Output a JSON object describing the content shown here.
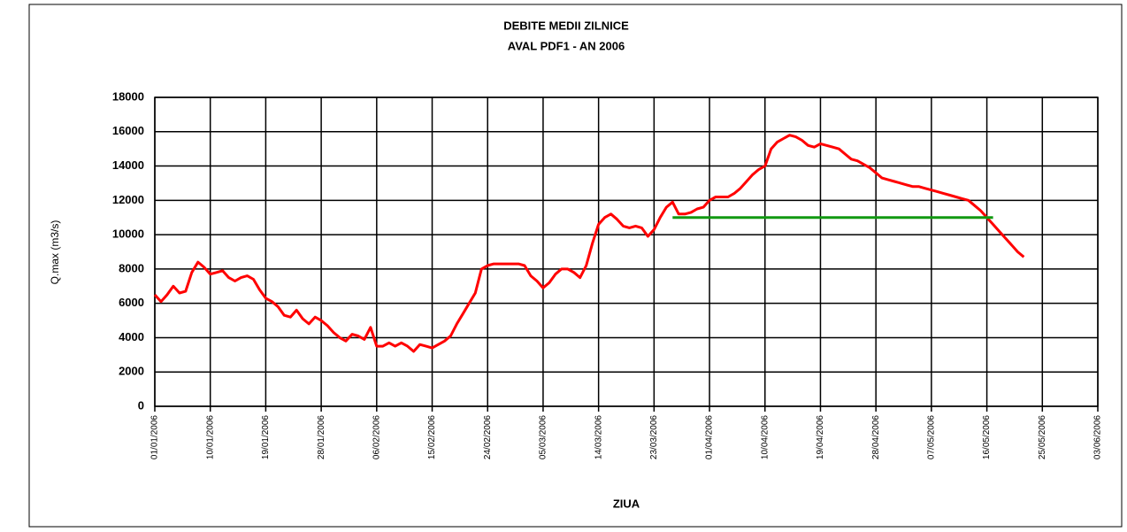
{
  "chart_data": {
    "type": "line",
    "title": "DEBITE MEDII ZILNICE",
    "subtitle": "AVAL PDF1 - AN 2006",
    "ylabel": "Q.max (m3/s)",
    "xlabel": "ZIUA",
    "grid": true,
    "ylim": [
      0,
      18000
    ],
    "yticks": [
      0,
      2000,
      4000,
      6000,
      8000,
      10000,
      12000,
      14000,
      16000,
      18000
    ],
    "xlim": [
      "2006-01-01",
      "2006-06-03"
    ],
    "xticks": [
      {
        "value": "2006-01-01",
        "label": "01/01/2006"
      },
      {
        "value": "2006-01-10",
        "label": "10/01/2006"
      },
      {
        "value": "2006-01-19",
        "label": "19/01/2006"
      },
      {
        "value": "2006-01-28",
        "label": "28/01/2006"
      },
      {
        "value": "2006-02-06",
        "label": "06/02/2006"
      },
      {
        "value": "2006-02-15",
        "label": "15/02/2006"
      },
      {
        "value": "2006-02-24",
        "label": "24/02/2006"
      },
      {
        "value": "2006-03-05",
        "label": "05/03/2006"
      },
      {
        "value": "2006-03-14",
        "label": "14/03/2006"
      },
      {
        "value": "2006-03-23",
        "label": "23/03/2006"
      },
      {
        "value": "2006-04-01",
        "label": "01/04/2006"
      },
      {
        "value": "2006-04-10",
        "label": "10/04/2006"
      },
      {
        "value": "2006-04-19",
        "label": "19/04/2006"
      },
      {
        "value": "2006-04-28",
        "label": "28/04/2006"
      },
      {
        "value": "2006-05-07",
        "label": "07/05/2006"
      },
      {
        "value": "2006-05-16",
        "label": "16/05/2006"
      },
      {
        "value": "2006-05-25",
        "label": "25/05/2006"
      },
      {
        "value": "2006-06-03",
        "label": "03/06/2006"
      }
    ],
    "series": [
      {
        "color": "#ff0000",
        "x": [
          "2006-01-01",
          "2006-01-02",
          "2006-01-03",
          "2006-01-04",
          "2006-01-05",
          "2006-01-06",
          "2006-01-07",
          "2006-01-08",
          "2006-01-09",
          "2006-01-10",
          "2006-01-11",
          "2006-01-12",
          "2006-01-13",
          "2006-01-14",
          "2006-01-15",
          "2006-01-16",
          "2006-01-17",
          "2006-01-18",
          "2006-01-19",
          "2006-01-20",
          "2006-01-21",
          "2006-01-22",
          "2006-01-23",
          "2006-01-24",
          "2006-01-25",
          "2006-01-26",
          "2006-01-27",
          "2006-01-28",
          "2006-01-29",
          "2006-01-30",
          "2006-01-31",
          "2006-02-01",
          "2006-02-02",
          "2006-02-03",
          "2006-02-04",
          "2006-02-05",
          "2006-02-06",
          "2006-02-07",
          "2006-02-08",
          "2006-02-09",
          "2006-02-10",
          "2006-02-11",
          "2006-02-12",
          "2006-02-13",
          "2006-02-14",
          "2006-02-15",
          "2006-02-16",
          "2006-02-17",
          "2006-02-18",
          "2006-02-19",
          "2006-02-20",
          "2006-02-21",
          "2006-02-22",
          "2006-02-23",
          "2006-02-24",
          "2006-02-25",
          "2006-02-26",
          "2006-02-27",
          "2006-02-28",
          "2006-03-01",
          "2006-03-02",
          "2006-03-03",
          "2006-03-04",
          "2006-03-05",
          "2006-03-06",
          "2006-03-07",
          "2006-03-08",
          "2006-03-09",
          "2006-03-10",
          "2006-03-11",
          "2006-03-12",
          "2006-03-13",
          "2006-03-14",
          "2006-03-15",
          "2006-03-16",
          "2006-03-17",
          "2006-03-18",
          "2006-03-19",
          "2006-03-20",
          "2006-03-21",
          "2006-03-22",
          "2006-03-23",
          "2006-03-24",
          "2006-03-25",
          "2006-03-26",
          "2006-03-27",
          "2006-03-28",
          "2006-03-29",
          "2006-03-30",
          "2006-03-31",
          "2006-04-01",
          "2006-04-02",
          "2006-04-03",
          "2006-04-04",
          "2006-04-05",
          "2006-04-06",
          "2006-04-07",
          "2006-04-08",
          "2006-04-09",
          "2006-04-10",
          "2006-04-11",
          "2006-04-12",
          "2006-04-13",
          "2006-04-14",
          "2006-04-15",
          "2006-04-16",
          "2006-04-17",
          "2006-04-18",
          "2006-04-19",
          "2006-04-20",
          "2006-04-21",
          "2006-04-22",
          "2006-04-23",
          "2006-04-24",
          "2006-04-25",
          "2006-04-26",
          "2006-04-27",
          "2006-04-28",
          "2006-04-29",
          "2006-04-30",
          "2006-05-01",
          "2006-05-02",
          "2006-05-03",
          "2006-05-04",
          "2006-05-05",
          "2006-05-06",
          "2006-05-07",
          "2006-05-08",
          "2006-05-09",
          "2006-05-10",
          "2006-05-11",
          "2006-05-12",
          "2006-05-13",
          "2006-05-14",
          "2006-05-15",
          "2006-05-16",
          "2006-05-17",
          "2006-05-18",
          "2006-05-19",
          "2006-05-20",
          "2006-05-21",
          "2006-05-22"
        ],
        "values": [
          6500,
          6100,
          6500,
          7000,
          6600,
          6700,
          7800,
          8400,
          8100,
          7700,
          7800,
          7900,
          7500,
          7300,
          7500,
          7600,
          7400,
          6800,
          6300,
          6100,
          5800,
          5300,
          5200,
          5600,
          5100,
          4800,
          5200,
          5000,
          4700,
          4300,
          4000,
          3800,
          4200,
          4100,
          3900,
          4600,
          3500,
          3500,
          3700,
          3500,
          3700,
          3500,
          3200,
          3600,
          3500,
          3400,
          3600,
          3800,
          4100,
          4800,
          5400,
          6000,
          6600,
          8000,
          8200,
          8300,
          8300,
          8300,
          8300,
          8300,
          8200,
          7600,
          7300,
          6900,
          7200,
          7700,
          8000,
          8000,
          7800,
          7500,
          8200,
          9500,
          10600,
          11000,
          11200,
          10900,
          10500,
          10400,
          10500,
          10400,
          9900,
          10300,
          11000,
          11600,
          11900,
          11200,
          11200,
          11300,
          11500,
          11600,
          12000,
          12200,
          12200,
          12200,
          12400,
          12700,
          13100,
          13500,
          13800,
          14000,
          15000,
          15400,
          15600,
          15800,
          15700,
          15500,
          15200,
          15100,
          15300,
          15200,
          15100,
          15000,
          14700,
          14400,
          14300,
          14100,
          13900,
          13600,
          13300,
          13200,
          13100,
          13000,
          12900,
          12800,
          12800,
          12700,
          12600,
          12500,
          12400,
          12300,
          12200,
          12100,
          12000,
          11700,
          11400,
          11000,
          10600,
          10200,
          9800,
          9400,
          9000,
          8700
        ]
      },
      {
        "color": "#119911",
        "x": [
          "2006-03-26",
          "2006-05-17"
        ],
        "values": [
          11000,
          11000
        ]
      }
    ]
  }
}
